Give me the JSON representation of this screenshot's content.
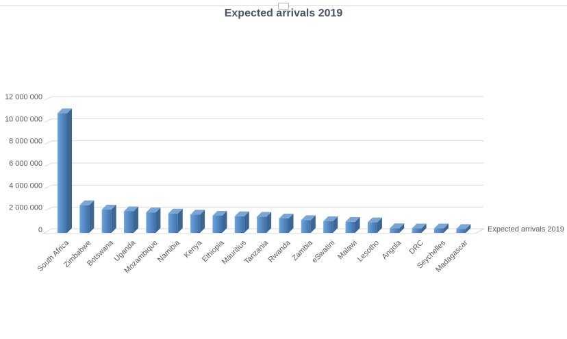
{
  "chart_data": {
    "type": "bar",
    "title": "Expected arrivals 2019",
    "series_label": "Expected arrivals 2019",
    "categories": [
      "South Africa",
      "Zimbabwe",
      "Botswana",
      "Uganda",
      "Mozambique",
      "Namibia",
      "Kenya",
      "Ethiopia",
      "Mauritius",
      "Tanzania",
      "Rwanda",
      "Zambia",
      "eSwatini",
      "Malawi",
      "Lesotho",
      "Angola",
      "DRC",
      "Seychelles",
      "Madagascar"
    ],
    "values": [
      10800000,
      2500000,
      2100000,
      1950000,
      1850000,
      1750000,
      1650000,
      1550000,
      1500000,
      1450000,
      1300000,
      1150000,
      1050000,
      1000000,
      950000,
      420000,
      400000,
      400000,
      350000
    ],
    "ylim": [
      0,
      12000000
    ],
    "ytick_step": 2000000,
    "ytick_labels": [
      "0",
      "2 000 000",
      "4 000 000",
      "6 000 000",
      "8 000 000",
      "10 000 000",
      "12 000 000"
    ],
    "grid": true,
    "style": "3d-column",
    "legend_position": "right-of-floor",
    "colors": {
      "bar_front_light": "#6ba3dc",
      "bar_front_dark": "#3f6fa8",
      "bar_side": "#3a6795",
      "bar_top": "#7ba6d4",
      "gridline": "#d9d9d9",
      "axis_text": "#595959",
      "title_text": "#44546a",
      "chart_border": "#d6d6d6"
    }
  }
}
